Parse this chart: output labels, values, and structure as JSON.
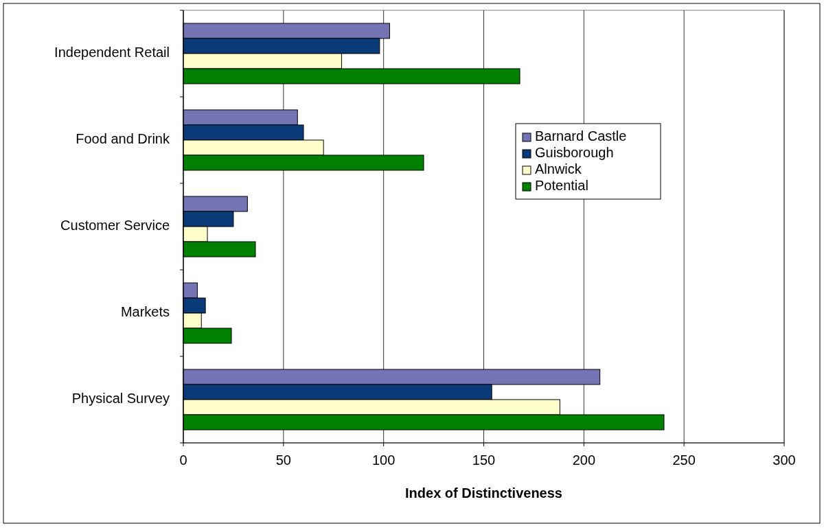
{
  "chart_data": {
    "type": "bar",
    "orientation": "horizontal",
    "xlabel": "Index of Distinctiveness",
    "categories": [
      "Independent Retail",
      "Food and Drink",
      "Customer Service",
      "Markets",
      "Physical Survey"
    ],
    "series": [
      {
        "name": "Barnard Castle",
        "color": "#7474b4",
        "values": [
          103,
          57,
          32,
          7,
          208
        ]
      },
      {
        "name": "Guisborough",
        "color": "#0b3a78",
        "values": [
          98,
          60,
          25,
          11,
          154
        ]
      },
      {
        "name": "Alnwick",
        "color": "#ffffcc",
        "values": [
          79,
          70,
          12,
          9,
          188
        ]
      },
      {
        "name": "Potential",
        "color": "#008000",
        "values": [
          168,
          120,
          36,
          24,
          240
        ]
      }
    ],
    "xlim": [
      0,
      300
    ],
    "xticks": [
      0,
      50,
      100,
      150,
      200,
      250,
      300
    ],
    "grid": "x",
    "legend": "right"
  }
}
